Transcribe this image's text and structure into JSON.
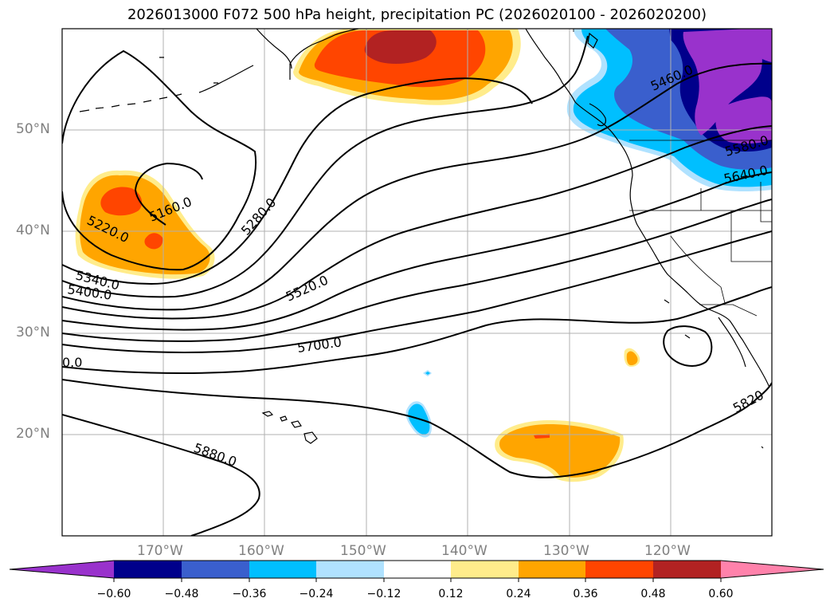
{
  "title": "2026013000 F072 500 hPa height, precipitation PC (2026020100 - 2026020200)",
  "lat_labels": [
    "50°N",
    "40°N",
    "30°N",
    "20°N"
  ],
  "lon_labels": [
    "170°W",
    "160°W",
    "150°W",
    "140°W",
    "130°W",
    "120°W"
  ],
  "contour_labels": [
    "5160.0",
    "5220.0",
    "5280.0",
    "5340.0",
    "5400.0",
    "5460.0",
    "5520.0",
    "5580.0",
    "5640.0",
    "5700.0",
    "5820",
    "5880.0",
    "0.0"
  ],
  "colorbar": {
    "ticks": [
      "−0.60",
      "−0.48",
      "−0.36",
      "−0.24",
      "−0.12",
      "0.12",
      "0.24",
      "0.36",
      "0.48",
      "0.60"
    ],
    "colors": [
      "#9932cc",
      "#00008b",
      "#3a5fcd",
      "#00bfff",
      "#b0e2ff",
      "#ffffff",
      "#ffec8b",
      "#ffa500",
      "#ff4500",
      "#b22222",
      "#ff82ab"
    ]
  },
  "colors": {
    "orange": "#ffa500",
    "orange_red": "#ff4500",
    "firebrick": "#b22222",
    "light_yellow": "#ffec8b",
    "deep_sky_blue": "#00bfff",
    "royal_blue": "#3a5fcd",
    "navy": "#00008b",
    "purple": "#9932cc"
  }
}
